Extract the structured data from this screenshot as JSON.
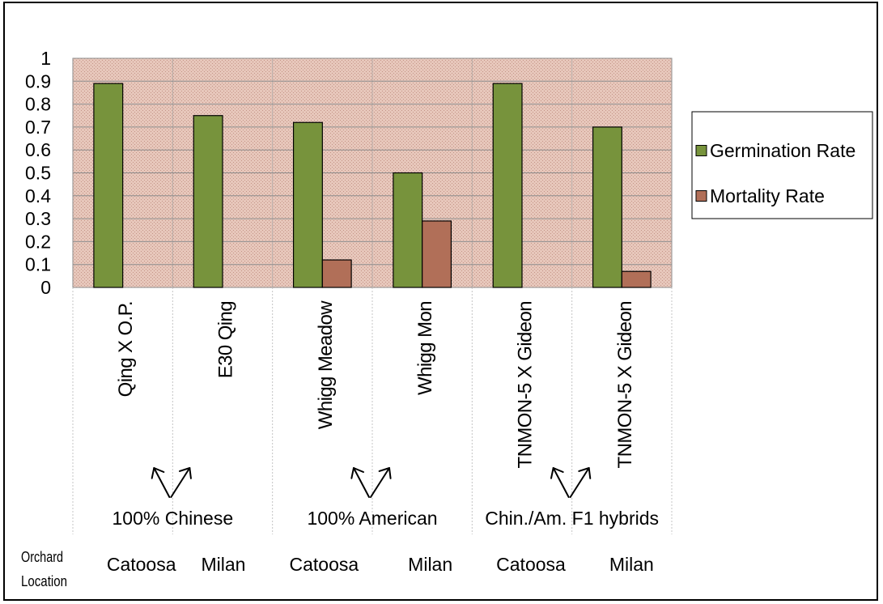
{
  "chart_data": {
    "type": "bar",
    "categories": [
      "Qing X O.P.",
      "E30 Qing",
      "Whigg Meadow",
      "Whigg Mon",
      "TNMON-5 X Gideon",
      "TNMON-5 X Gideon"
    ],
    "series": [
      {
        "name": "Germination Rate",
        "color": "#77933c",
        "values": [
          0.89,
          0.75,
          0.72,
          0.5,
          0.89,
          0.7
        ]
      },
      {
        "name": "Mortality Rate",
        "color": "#b16f58",
        "values": [
          0,
          0,
          0.12,
          0.29,
          0,
          0.07
        ]
      }
    ],
    "groups": [
      {
        "label": "100% Chinese",
        "category_count": 2
      },
      {
        "label": "100% American",
        "category_count": 2
      },
      {
        "label": "Chin./Am. F1 hybrids",
        "category_count": 2
      }
    ],
    "group_marker_icon": "diverging-arrows-icon",
    "location_header": [
      "Orchard",
      "Location"
    ],
    "locations": [
      "Catoosa",
      "Milan",
      "Catoosa",
      "Milan",
      "Catoosa",
      "Milan"
    ],
    "ylim": [
      0,
      1
    ],
    "yticks": [
      0,
      0.1,
      0.2,
      0.3,
      0.4,
      0.5,
      0.6,
      0.7,
      0.8,
      0.9,
      1
    ],
    "grid": true,
    "legend_position": "right",
    "plot_background": {
      "base": "#e7c7bb",
      "dots": "#c49487"
    }
  }
}
